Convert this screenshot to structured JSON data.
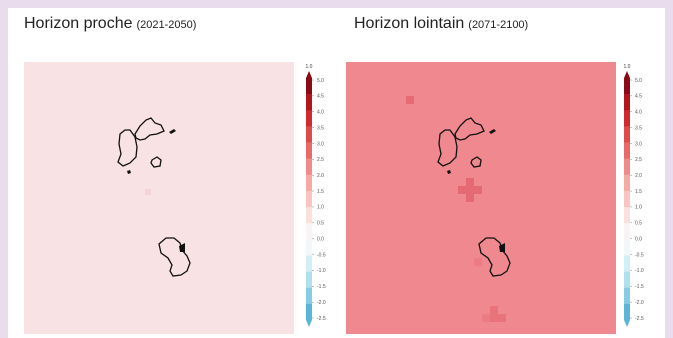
{
  "panels": [
    {
      "title": "Horizon proche",
      "period": "(2021-2050)",
      "background_color": "#f8e2e3"
    },
    {
      "title": "Horizon lointain",
      "period": "(2071-2100)",
      "background_color": "#f0888f"
    }
  ],
  "colorbar": {
    "top_label": "1.0",
    "ticks": [
      "5.0",
      "4.5",
      "4.0",
      "3.5",
      "3.0",
      "2.5",
      "2.0",
      "1.5",
      "1.0",
      "0.5",
      "0.0",
      "-0.5",
      "-1.0",
      "-1.5",
      "-2.0",
      "-2.5"
    ],
    "colors": [
      "#8a0a16",
      "#b2161f",
      "#cf2a2f",
      "#de4b4b",
      "#e86a6a",
      "#f18b89",
      "#f6aaa6",
      "#fac5c1",
      "#fce0dc",
      "#f8f4f4",
      "#f2f7fa",
      "#d4eef6",
      "#afe0ee",
      "#84cde5",
      "#5ab6d9"
    ]
  },
  "colors": {
    "page_background": "#e9dced",
    "card_background": "#ffffff",
    "outline": "#111111"
  }
}
